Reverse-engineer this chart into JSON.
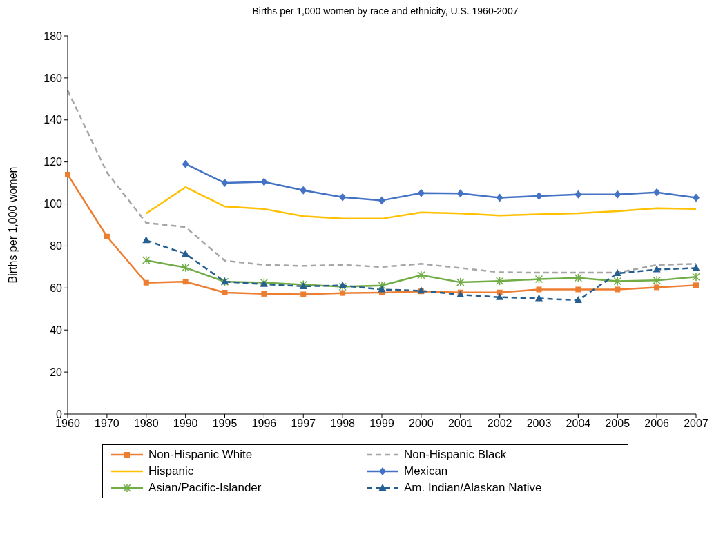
{
  "chart_data": {
    "type": "line",
    "title": "Births per 1,000 women by race and ethnicity, U.S. 1960-2007",
    "ylabel": "Births per 1,000 women",
    "categories": [
      "1960",
      "1970",
      "1980",
      "1990",
      "1995",
      "1996",
      "1997",
      "1998",
      "1999",
      "2000",
      "2001",
      "2002",
      "2003",
      "2004",
      "2005",
      "2006",
      "2007"
    ],
    "ylim": [
      0,
      180
    ],
    "yticks": [
      0,
      20,
      40,
      60,
      80,
      100,
      120,
      140,
      160,
      180
    ],
    "grid": false,
    "legend": "bottom",
    "series": [
      {
        "name": "Non-Hispanic White",
        "color": "#ed7d31",
        "marker": "square",
        "line_style": "solid",
        "values": [
          114,
          84.5,
          62.5,
          63,
          57.8,
          57.2,
          57,
          57.6,
          57.8,
          58.4,
          57.9,
          57.9,
          59.3,
          59.3,
          59.3,
          60.3,
          61.3
        ]
      },
      {
        "name": "Non-Hispanic Black",
        "color": "#a5a5a5",
        "marker": "none",
        "line_style": "dashed",
        "values": [
          154,
          115,
          91,
          89,
          73,
          71,
          70.5,
          71,
          70,
          71.5,
          69.5,
          67.5,
          67.3,
          67.3,
          67.3,
          71,
          71.5
        ]
      },
      {
        "name": "Hispanic",
        "color": "#ffc000",
        "marker": "none",
        "line_style": "solid",
        "values": [
          null,
          null,
          95.5,
          108,
          98.8,
          97.6,
          94.2,
          93,
          93,
          96,
          95.5,
          94.5,
          95.1,
          95.6,
          96.6,
          98,
          97.6
        ]
      },
      {
        "name": "Mexican",
        "color": "#4472c4",
        "marker": "diamond",
        "line_style": "solid",
        "values": [
          null,
          null,
          null,
          119,
          110,
          110.5,
          106.5,
          103.2,
          101.7,
          105.2,
          105,
          103,
          103.8,
          104.5,
          104.5,
          105.5,
          103
        ]
      },
      {
        "name": "Asian/Pacific-Islander",
        "color": "#70ad47",
        "marker": "cross",
        "line_style": "solid",
        "values": [
          null,
          null,
          73.2,
          69.7,
          63,
          62.6,
          61.6,
          60.6,
          61.2,
          66.1,
          62.7,
          63.3,
          64.2,
          64.8,
          63.2,
          63.6,
          65.3
        ]
      },
      {
        "name": "Am. Indian/Alaskan Native",
        "color": "#255e91",
        "marker": "triangle",
        "line_style": "dashed",
        "values": [
          null,
          null,
          82.7,
          76.2,
          63,
          61.8,
          60.8,
          61.2,
          59.3,
          58.7,
          56.8,
          55.6,
          55,
          54.2,
          67,
          68.8,
          69.5
        ]
      }
    ]
  }
}
